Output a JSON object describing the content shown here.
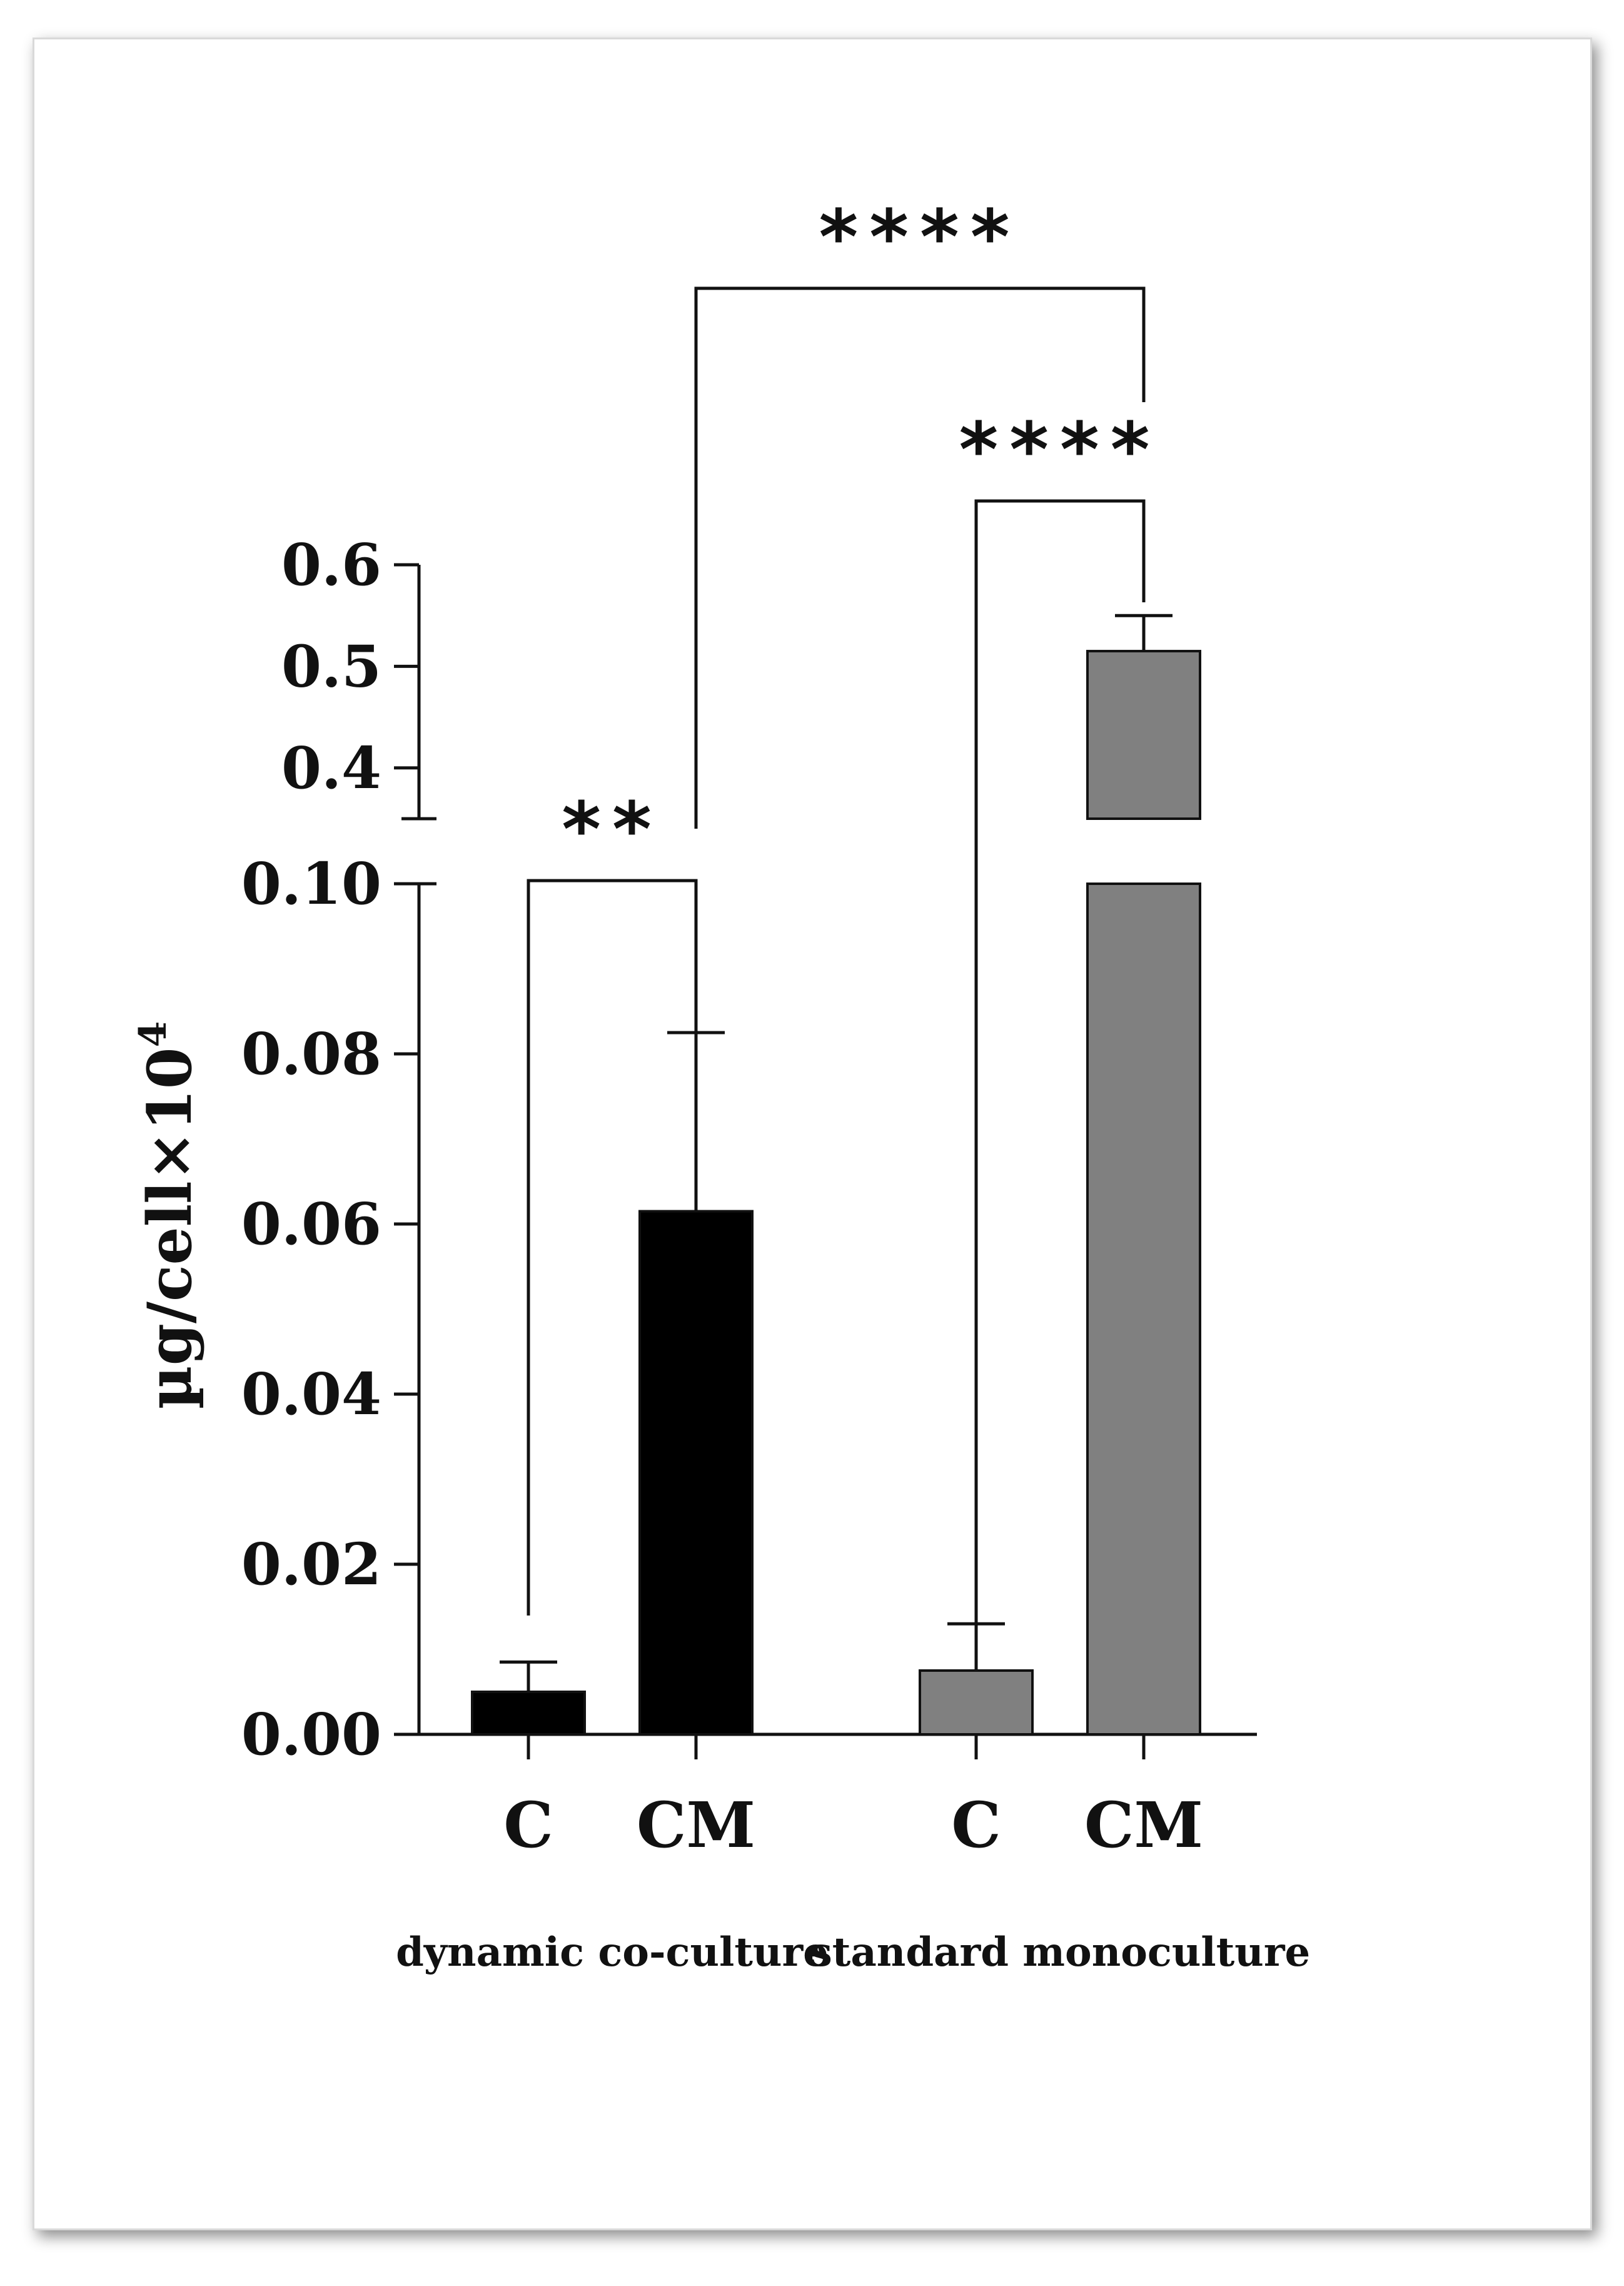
{
  "chart_data": {
    "type": "bar",
    "ylabel": "µg/cell×10",
    "ylabel_superscript": "4",
    "axis_break": true,
    "lower_ylim": [
      0,
      0.1
    ],
    "upper_ylim": [
      0.35,
      0.6
    ],
    "lower_ticks": [
      "0.00",
      "0.02",
      "0.04",
      "0.06",
      "0.08",
      "0.10"
    ],
    "upper_ticks": [
      "0.4",
      "0.5",
      "0.6"
    ],
    "categories": [
      "C",
      "CM",
      "C",
      "CM"
    ],
    "groups": [
      {
        "label": "dynamic co-culture",
        "color": "#000000",
        "bars": [
          0,
          1
        ]
      },
      {
        "label": "standard monoculture",
        "color": "#808080",
        "bars": [
          2,
          3
        ]
      }
    ],
    "values": [
      0.005,
      0.0615,
      0.0075,
      0.515
    ],
    "errors": [
      0.0035,
      0.021,
      0.0055,
      0.035
    ],
    "significance": [
      {
        "label": "**",
        "from": 0,
        "to": 1
      },
      {
        "label": "****",
        "from": 2,
        "to": 3
      },
      {
        "label": "****",
        "from": 1,
        "to": 3
      }
    ],
    "legend": "none",
    "grid": false
  }
}
